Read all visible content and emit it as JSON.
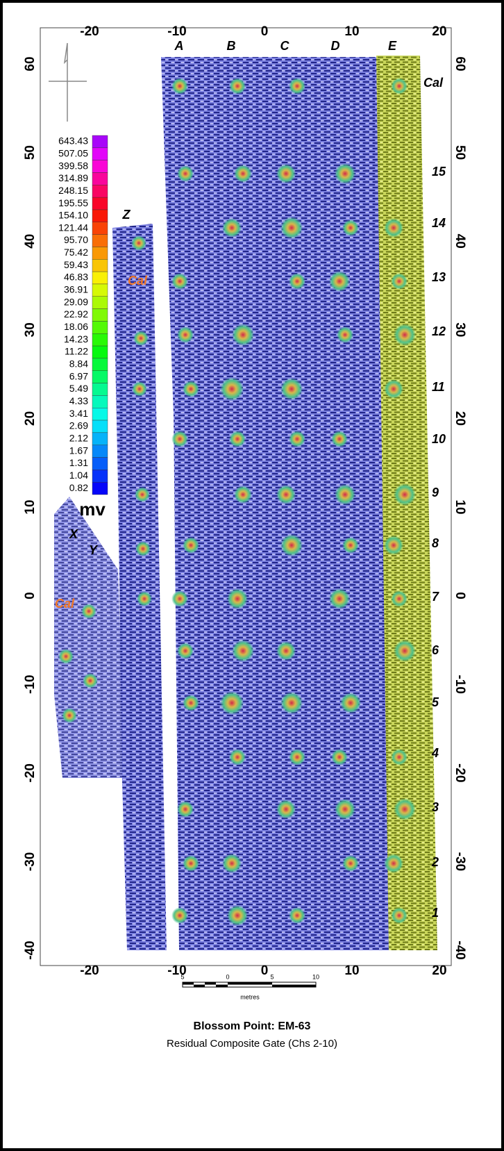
{
  "axes": {
    "x_ticks": [
      -20,
      -10,
      0,
      10,
      20
    ],
    "y_ticks": [
      60,
      50,
      40,
      30,
      20,
      10,
      0,
      -10,
      -20,
      -30,
      -40
    ]
  },
  "legend": {
    "levels": [
      "643.43",
      "507.05",
      "399.58",
      "314.89",
      "248.15",
      "195.55",
      "154.10",
      "121.44",
      "95.70",
      "75.42",
      "59.43",
      "46.83",
      "36.91",
      "29.09",
      "22.92",
      "18.06",
      "14.23",
      "11.22",
      "8.84",
      "6.97",
      "5.49",
      "4.33",
      "3.41",
      "2.69",
      "2.12",
      "1.67",
      "1.31",
      "1.04",
      "0.82"
    ],
    "unit": "mv"
  },
  "columns": [
    "A",
    "B",
    "C",
    "D",
    "E"
  ],
  "rows": [
    "Cal",
    "15",
    "14",
    "13",
    "12",
    "11",
    "10",
    "9",
    "8",
    "7",
    "6",
    "5",
    "4",
    "3",
    "2",
    "1"
  ],
  "strip_labels": {
    "z": "Z",
    "x": "X",
    "y": "Y",
    "cal_z": "Cal",
    "cal_xy": "Cal"
  },
  "scale_bar": {
    "ticks": [
      "5",
      "0",
      "5",
      "10"
    ],
    "unit": "metres"
  },
  "title": "Blossom Point: EM-63",
  "subtitle": "Residual Composite Gate (Chs 2-10)"
}
